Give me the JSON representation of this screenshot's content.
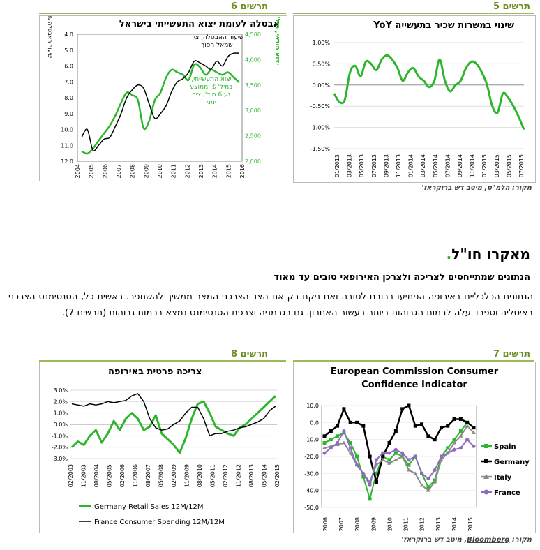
{
  "fig5": {
    "label": "תרשים 5",
    "title": "שינוי במשרות שכיר בתעשייה YoY",
    "source": "מקור: הלמ\"ס, מיטב דש ברוקראז'",
    "chart_data": {
      "type": "line",
      "ylim": [
        -1.5,
        1.0
      ],
      "ytick_labels": [
        "1.00%",
        "0.50%",
        "0.00%",
        "-0.50%",
        "-1.00%",
        "-1.50%"
      ],
      "xtick_labels": [
        "01/2013",
        "03/2013",
        "05/2013",
        "07/2013",
        "09/2013",
        "11/2013",
        "01/2014",
        "03/2014",
        "05/2014",
        "07/2014",
        "09/2014",
        "11/2014",
        "01/2015",
        "03/2015",
        "05/2015",
        "07/2015"
      ],
      "color": "#2db52d",
      "values": [
        -0.2,
        -0.4,
        -0.35,
        0.3,
        0.45,
        0.2,
        0.55,
        0.5,
        0.35,
        0.6,
        0.7,
        0.6,
        0.4,
        0.1,
        0.3,
        0.4,
        0.2,
        0.1,
        -0.05,
        0.1,
        0.6,
        0.1,
        -0.15,
        0.0,
        0.1,
        0.4,
        0.55,
        0.5,
        0.3,
        0.0,
        -0.5,
        -0.65,
        -0.2,
        -0.3,
        -0.5,
        -0.75,
        -1.05
      ]
    }
  },
  "fig6": {
    "label": "תרשים 6",
    "title": "אבטלה לעומת יצוא התעשייתי בישראל",
    "annotation_black": "שיעור האבטלה, ציר שמאל הפוך",
    "annotation_green": "יצוא התעשייתי, במיל' $, ממוצע נע 6 חוד', ציר ימני",
    "left_axis_label": "שיעור האבטלה % - ציר הפוך",
    "right_axis_label": "יצוא חודשי, מיל' דולרים",
    "chart_data": {
      "type": "line",
      "left_ylim": [
        4.0,
        12.0
      ],
      "left_tick_labels": [
        "4.0",
        "5.0",
        "6.0",
        "7.0",
        "8.0",
        "9.0",
        "10.0",
        "11.0",
        "12.0"
      ],
      "right_ylim": [
        2000,
        4500
      ],
      "right_tick_labels": [
        "4,500",
        "4,000",
        "3,500",
        "3,000",
        "2,500",
        "2,000"
      ],
      "xtick_labels": [
        "2004",
        "2005",
        "2006",
        "2007",
        "2008",
        "2009",
        "2010",
        "2011",
        "2012",
        "2013",
        "2014",
        "2015",
        "2016"
      ],
      "series": [
        {
          "color": "#000000",
          "values": [
            10.5,
            10.0,
            11.3,
            11.0,
            10.6,
            10.5,
            9.8,
            9.0,
            8.0,
            7.5,
            7.2,
            7.4,
            8.4,
            9.3,
            9.0,
            8.5,
            7.6,
            7.0,
            6.8,
            6.4,
            5.7,
            5.8,
            6.0,
            6.2,
            5.7,
            6.0,
            5.4,
            5.2,
            5.2
          ]
        },
        {
          "color": "#2db52d",
          "values": [
            2200,
            2150,
            2250,
            2400,
            2550,
            2700,
            2900,
            3150,
            3350,
            3300,
            3200,
            2650,
            2800,
            3200,
            3350,
            3650,
            3800,
            3750,
            3700,
            3600,
            3900,
            3850,
            3700,
            3800,
            3750,
            3700,
            3750,
            3650,
            3550
          ]
        }
      ]
    }
  },
  "section": {
    "heading": "מאקרו חו\"ל",
    "dot": ".",
    "subheading": "הנתונים שמתייחסים לצריכה ולצרכן האירופאי טובים עד מאוד",
    "paragraph": "הנתונים הכלכליים באירופה הפתיעו ברובם לטובה ואם ניקח רק את הצד הצרכני המצב ממשיך להשתפר. ראשית כל, הסנטימנט הצרכני באיטליה וספרד עלה לרמות הגבוהות ביותר בעשור האחרון. גם בגרמניה וצרפת הסנטימנט נמצא ברמות גבוהות (תרשים 7)."
  },
  "fig7": {
    "label": "תרשים 7",
    "title_line1": "European Commission Consumer",
    "title_line2": "Confidence Indicator",
    "source_prefix": "מקור: ",
    "source_underlined": "Bloomberg",
    "source_suffix": ", מיטב דש ברוקראז'",
    "chart_data": {
      "type": "line",
      "ylim": [
        -50,
        10
      ],
      "ytick_labels": [
        "10.0",
        "0.0",
        "-10.0",
        "-20.0",
        "-30.0",
        "-40.0",
        "-50.0"
      ],
      "xtick_labels": [
        "2006",
        "2007",
        "2008",
        "2009",
        "2010",
        "2011",
        "2012",
        "2013",
        "2014",
        "2015"
      ],
      "series": [
        {
          "name": "Spain",
          "color": "#2db52d",
          "values": [
            -12,
            -10,
            -8,
            -6,
            -12,
            -20,
            -32,
            -45,
            -30,
            -20,
            -22,
            -18,
            -20,
            -25,
            -20,
            -30,
            -38,
            -34,
            -20,
            -15,
            -10,
            -5,
            0,
            -3
          ]
        },
        {
          "name": "Germany",
          "color": "#000000",
          "values": [
            -8,
            -5,
            -2,
            8,
            0,
            0,
            -2,
            -20,
            -35,
            -20,
            -12,
            -5,
            8,
            10,
            -2,
            -1,
            -8,
            -10,
            -3,
            -2,
            2,
            2,
            0,
            -3
          ]
        },
        {
          "name": "Italy",
          "color": "#8a8a8a",
          "values": [
            -15,
            -14,
            -13,
            -12,
            -18,
            -25,
            -30,
            -35,
            -25,
            -22,
            -24,
            -22,
            -20,
            -28,
            -30,
            -37,
            -40,
            -35,
            -22,
            -18,
            -12,
            -8,
            -2,
            -6
          ]
        },
        {
          "name": "France",
          "color": "#8e6bbf",
          "values": [
            -18,
            -15,
            -12,
            -5,
            -15,
            -25,
            -30,
            -37,
            -22,
            -18,
            -18,
            -16,
            -18,
            -22,
            -20,
            -30,
            -33,
            -28,
            -20,
            -18,
            -16,
            -15,
            -10,
            -14
          ]
        }
      ]
    }
  },
  "fig8": {
    "label": "תרשים 8",
    "title": "צריכה פרטית באירופה",
    "chart_data": {
      "type": "line",
      "ylim": [
        -3.0,
        3.0
      ],
      "ytick_labels": [
        "3.0%",
        "2.0%",
        "1.0%",
        "0.0%",
        "-1.0%",
        "-2.0%",
        "-3.0%"
      ],
      "xtick_labels": [
        "02/2003",
        "11/2003",
        "08/2004",
        "05/2005",
        "02/2006",
        "11/2006",
        "08/2007",
        "05/2008",
        "02/2009",
        "11/2009",
        "08/2010",
        "05/2011",
        "02/2012",
        "11/2012",
        "08/2013",
        "05/2014",
        "02/2015"
      ],
      "series": [
        {
          "name": "Germany Retail Sales 12M/12M",
          "color": "#2db52d",
          "values": [
            -2.0,
            -1.5,
            -1.8,
            -1.0,
            -0.5,
            -1.6,
            -0.8,
            0.3,
            -0.5,
            0.5,
            1.0,
            0.5,
            -0.5,
            -0.2,
            0.8,
            -0.8,
            -1.3,
            -1.8,
            -2.5,
            -1.2,
            0.5,
            1.8,
            2.0,
            1.0,
            -0.2,
            -0.5,
            -0.8,
            -1.0,
            -0.3,
            0.0,
            0.5,
            1.0,
            1.5,
            2.0,
            2.5
          ]
        },
        {
          "name": "France Consumer Spending 12M/12M",
          "color": "#000000",
          "values": [
            1.8,
            1.7,
            1.6,
            1.8,
            1.7,
            1.8,
            2.0,
            1.9,
            2.0,
            2.1,
            2.5,
            2.7,
            2.0,
            0.5,
            -0.3,
            -0.5,
            -0.4,
            0.0,
            0.3,
            1.0,
            1.5,
            1.5,
            0.5,
            -1.0,
            -0.8,
            -0.8,
            -0.6,
            -0.5,
            -0.3,
            -0.2,
            0.0,
            0.2,
            0.5,
            1.2,
            1.6
          ]
        }
      ]
    }
  }
}
